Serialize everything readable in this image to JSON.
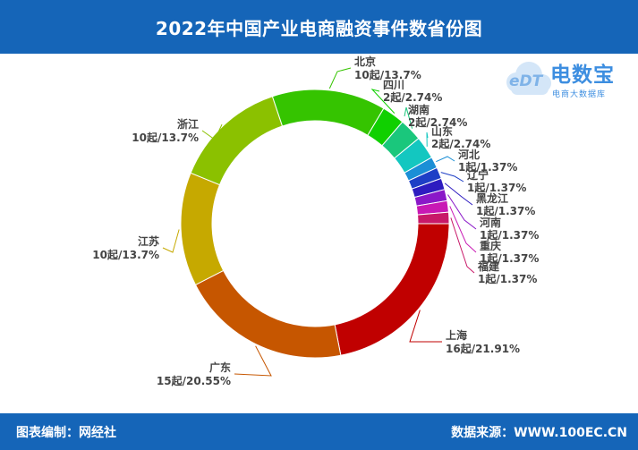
{
  "header": {
    "title": "2022年中国产业电商融资事件数省份图"
  },
  "logo": {
    "icon": "cloud-icon",
    "mark_text": "eDT",
    "title": "电数宝",
    "subtitle": "电商大数据库"
  },
  "footer": {
    "left_text": "图表编制：网经社",
    "right_text": "数据来源：WWW.100EC.CN"
  },
  "chart_data": {
    "type": "pie",
    "title": "2022年中国产业电商融资事件数省份图",
    "categories": [
      "上海",
      "广东",
      "江苏",
      "浙江",
      "北京",
      "四川",
      "湖南",
      "山东",
      "河北",
      "辽宁",
      "黑龙江",
      "河南",
      "重庆",
      "福建"
    ],
    "values": [
      16,
      15,
      10,
      10,
      10,
      2,
      2,
      2,
      1,
      1,
      1,
      1,
      1,
      1
    ],
    "labels": [
      "16起/21.91%",
      "15起/20.55%",
      "10起/13.7%",
      "10起/13.7%",
      "10起/13.7%",
      "2起/2.74%",
      "2起/2.74%",
      "2起/2.74%",
      "1起/1.37%",
      "1起/1.37%",
      "1起/1.37%",
      "1起/1.37%",
      "1起/1.37%",
      "1起/1.37%"
    ],
    "colors": [
      "#c00000",
      "#c65600",
      "#c6a900",
      "#8bc100",
      "#35c400",
      "#10d000",
      "#1ac77c",
      "#13c7c0",
      "#1b8fd6",
      "#1e3fc6",
      "#2e1cc0",
      "#8a18c8",
      "#c818b4",
      "#c81868"
    ]
  }
}
